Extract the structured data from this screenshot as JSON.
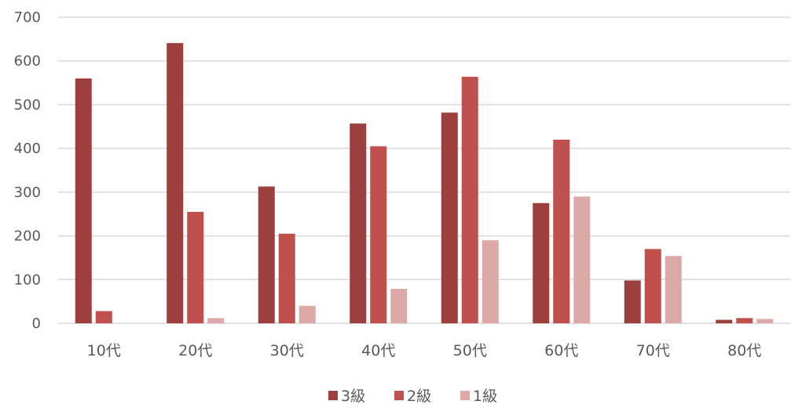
{
  "chart_data": {
    "type": "bar",
    "title": "",
    "xlabel": "",
    "ylabel": "",
    "categories": [
      "10代",
      "20代",
      "30代",
      "40代",
      "50代",
      "60代",
      "70代",
      "80代"
    ],
    "series": [
      {
        "name": "3級",
        "color": "#9C3F3D",
        "values": [
          560,
          641,
          313,
          457,
          482,
          275,
          98,
          8
        ]
      },
      {
        "name": "2級",
        "color": "#C0504D",
        "values": [
          28,
          255,
          205,
          405,
          564,
          420,
          170,
          12
        ]
      },
      {
        "name": "1級",
        "color": "#DCA9A8",
        "values": [
          0,
          12,
          40,
          79,
          190,
          290,
          154,
          10
        ]
      }
    ],
    "ylim": [
      0,
      700
    ],
    "yticks": [
      0,
      100,
      200,
      300,
      400,
      500,
      600,
      700
    ],
    "grid": true,
    "legend_position": "bottom"
  }
}
